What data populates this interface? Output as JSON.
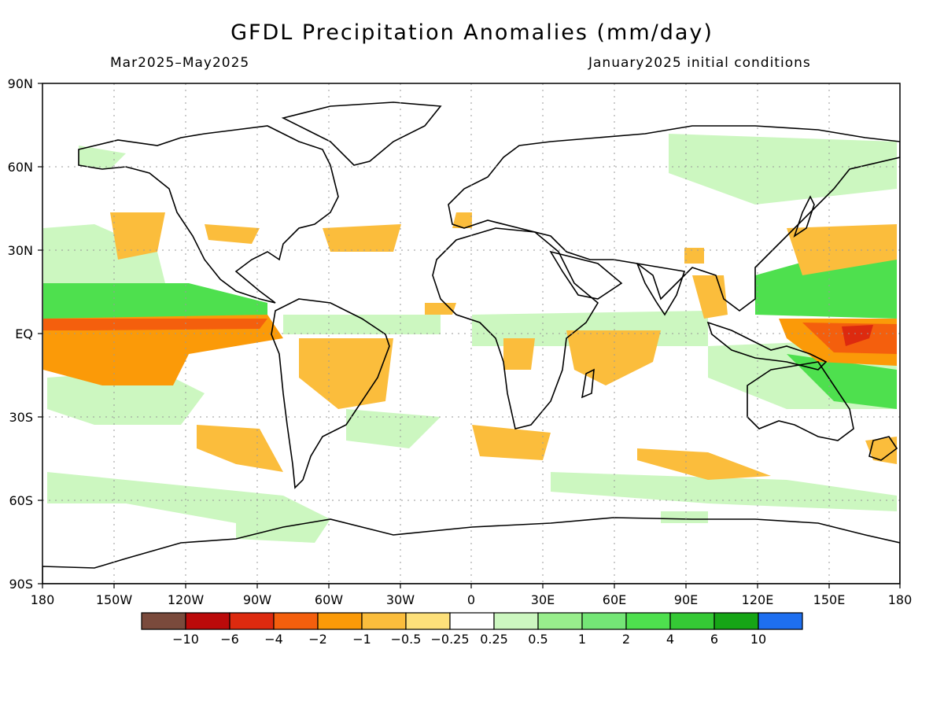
{
  "title": "GFDL Precipitation Anomalies (mm/day)",
  "subtitle_left": "Mar2025–May2025",
  "subtitle_right": "January2025 initial conditions",
  "axes": {
    "lat_ticks": [
      "90N",
      "60N",
      "30N",
      "EQ",
      "30S",
      "60S",
      "90S"
    ],
    "lon_ticks": [
      "180",
      "150W",
      "120W",
      "90W",
      "60W",
      "30W",
      "0",
      "30E",
      "60E",
      "90E",
      "120E",
      "150E",
      "180"
    ]
  },
  "colorbar": {
    "colors": [
      "#7a4a3c",
      "#bb0a0a",
      "#dd2a0f",
      "#f45f0d",
      "#fb9a08",
      "#fbbd3c",
      "#fde07a",
      "#ffffff",
      "#ccf7c0",
      "#98ee8c",
      "#74e676",
      "#4ee04e",
      "#35c935",
      "#16a516",
      "#1e6ff0"
    ],
    "labels": [
      "−10",
      "−6",
      "−4",
      "−2",
      "−1",
      "−0.5",
      "−0.25",
      "0.25",
      "0.5",
      "1",
      "2",
      "4",
      "6",
      "10"
    ]
  },
  "anomaly_regions": [
    {
      "name": "equatorial-east-pacific-dry",
      "color": "#fb9a08"
    },
    {
      "name": "equatorial-east-pacific-dry-core",
      "color": "#f45f0d"
    },
    {
      "name": "west-pacific-dry-core",
      "color": "#dd2a0f"
    },
    {
      "name": "itcz-pacific-wet",
      "color": "#4ee04e"
    },
    {
      "name": "west-pacific-wet",
      "color": "#4ee04e"
    },
    {
      "name": "amazon-dry",
      "color": "#fbbd3c"
    },
    {
      "name": "east-africa-indian-ocean-dry",
      "color": "#fbbd3c"
    },
    {
      "name": "southern-ocean-wet",
      "color": "#ccf7c0"
    }
  ]
}
